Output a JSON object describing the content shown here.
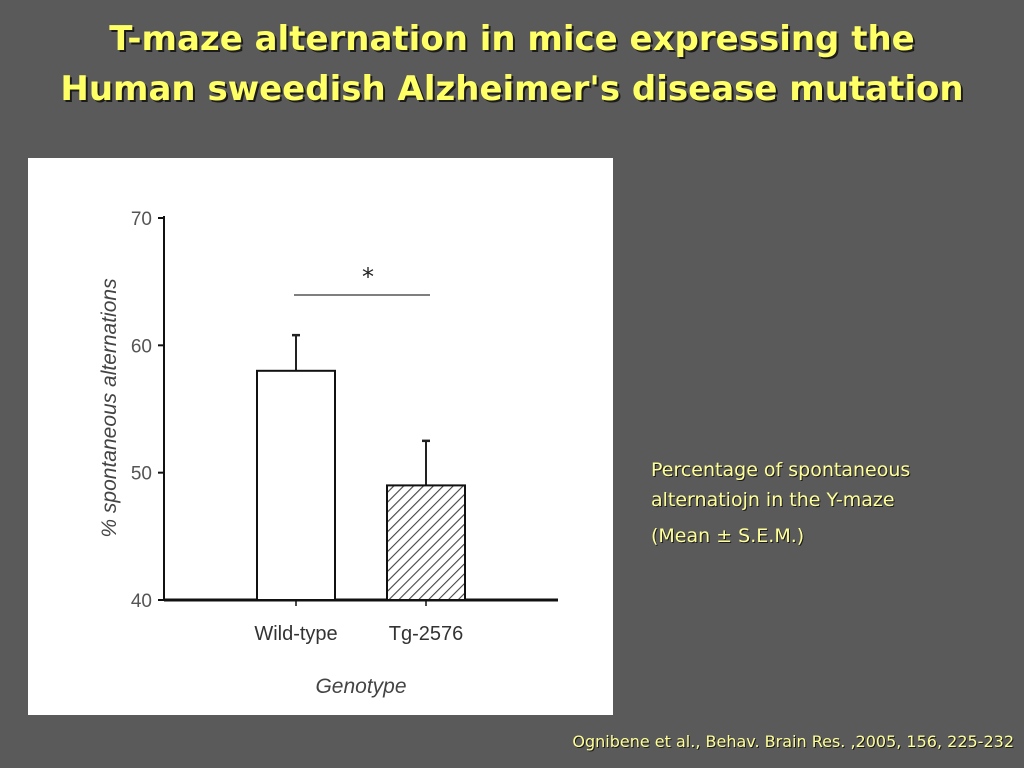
{
  "slide": {
    "title_line1": "T-maze alternation in mice expressing the",
    "title_line2": "Human sweedish  Alzheimer's disease mutation"
  },
  "caption": {
    "line1": "Percentage of spontaneous alternatiojn in the Y-maze",
    "line2": "(Mean ± S.E.M.)"
  },
  "citation": "Ognibene et al., Behav. Brain Res. ,2005, 156, 225-232",
  "colors": {
    "background": "#5a5a5a",
    "title": "#ffff66",
    "caption": "#ffff99",
    "panel": "#ffffff"
  },
  "chart_data": {
    "type": "bar",
    "categories": [
      "Wild-type",
      "Tg-2576"
    ],
    "values": [
      58,
      49
    ],
    "errors": [
      2.8,
      3.5
    ],
    "bar_fill": [
      "white",
      "hatched"
    ],
    "xlabel": "Genotype",
    "ylabel": "% spontaneous alternations",
    "ylim": [
      40,
      70
    ],
    "yticks": [
      40,
      50,
      60,
      70
    ],
    "significance": {
      "between": [
        "Wild-type",
        "Tg-2576"
      ],
      "label": "*"
    },
    "grid": false
  }
}
